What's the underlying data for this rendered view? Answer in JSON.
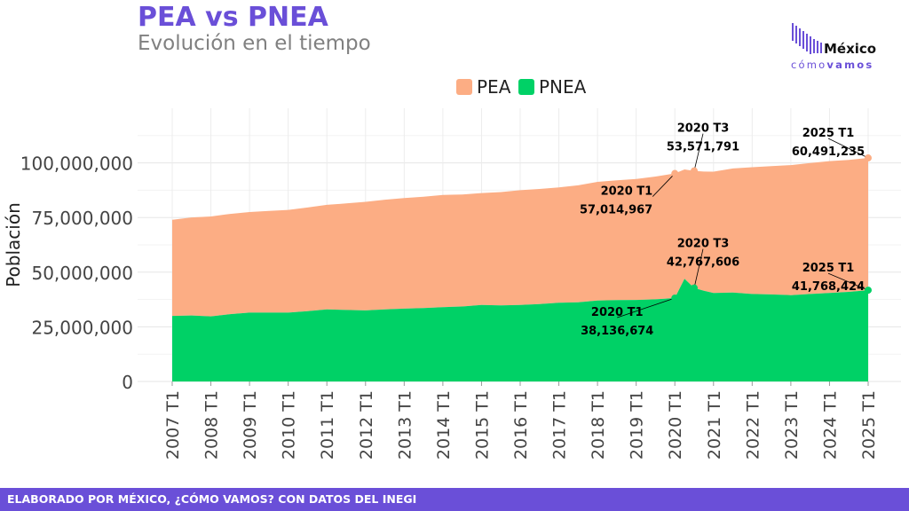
{
  "header": {
    "title": "PEA vs PNEA",
    "subtitle": "Evolución en el tiempo"
  },
  "logo": {
    "name": "México",
    "sub_light": "cómo",
    "sub_bold": "vamos"
  },
  "footer": {
    "text": "ELABORADO POR MÉXICO, ¿CÓMO VAMOS? CON DATOS DEL INEGI"
  },
  "colors": {
    "pea": "#fcad84",
    "pnea": "#00d166",
    "brand": "#6a4fd8"
  },
  "chart_data": {
    "type": "area",
    "stacked": true,
    "title": "PEA vs PNEA",
    "subtitle": "Evolución en el tiempo",
    "ylabel": "Población",
    "xlabel": "",
    "ylim": [
      0,
      125000000
    ],
    "yticks": [
      0,
      25000000,
      50000000,
      75000000,
      100000000
    ],
    "ytick_labels": [
      "0",
      "25,000,000",
      "50,000,000",
      "75,000,000",
      "100,000,000"
    ],
    "x_tick_labels": [
      "2007 T1",
      "2008 T1",
      "2009 T1",
      "2010 T1",
      "2011 T1",
      "2012 T1",
      "2013 T1",
      "2014 T1",
      "2015 T1",
      "2016 T1",
      "2017 T1",
      "2018 T1",
      "2019 T1",
      "2020 T1",
      "2021 T1",
      "2022 T1",
      "2023 T1",
      "2024 T1",
      "2025 T1"
    ],
    "grid": true,
    "legend_position": "top-center",
    "series": [
      {
        "name": "PEA",
        "color": "#fcad84",
        "points": [
          [
            "2007 T1",
            44000000
          ],
          [
            "2008 T1",
            45700000
          ],
          [
            "2009 T1",
            46000000
          ],
          [
            "2010 T1",
            47000000
          ],
          [
            "2011 T1",
            47800000
          ],
          [
            "2012 T1",
            49700000
          ],
          [
            "2013 T1",
            50600000
          ],
          [
            "2014 T1",
            51300000
          ],
          [
            "2015 T1",
            51200000
          ],
          [
            "2016 T1",
            52500000
          ],
          [
            "2017 T1",
            52800000
          ],
          [
            "2018 T1",
            54300000
          ],
          [
            "2019 T1",
            55300000
          ],
          [
            "2020 T1",
            57014967
          ],
          [
            "2020 T2",
            50000000
          ],
          [
            "2020 T3",
            53571791
          ],
          [
            "2021 T1",
            55500000
          ],
          [
            "2022 T1",
            58000000
          ],
          [
            "2023 T1",
            59500000
          ],
          [
            "2024 T1",
            60300000
          ],
          [
            "2025 T1",
            60491235
          ]
        ]
      },
      {
        "name": "PNEA",
        "color": "#00d166",
        "points": [
          [
            "2007 T1",
            30000000
          ],
          [
            "2007 T3",
            30200000
          ],
          [
            "2008 T1",
            29800000
          ],
          [
            "2008 T3",
            30800000
          ],
          [
            "2009 T1",
            31500000
          ],
          [
            "2009 T3",
            31500000
          ],
          [
            "2010 T1",
            31500000
          ],
          [
            "2010 T3",
            32200000
          ],
          [
            "2011 T1",
            33000000
          ],
          [
            "2011 T3",
            32700000
          ],
          [
            "2012 T1",
            32500000
          ],
          [
            "2012 T3",
            33000000
          ],
          [
            "2013 T1",
            33300000
          ],
          [
            "2013 T3",
            33600000
          ],
          [
            "2014 T1",
            34000000
          ],
          [
            "2014 T3",
            34300000
          ],
          [
            "2015 T1",
            35000000
          ],
          [
            "2015 T3",
            34800000
          ],
          [
            "2016 T1",
            35000000
          ],
          [
            "2016 T3",
            35400000
          ],
          [
            "2017 T1",
            36000000
          ],
          [
            "2017 T3",
            36200000
          ],
          [
            "2018 T1",
            37000000
          ],
          [
            "2018 T3",
            37200000
          ],
          [
            "2019 T1",
            37300000
          ],
          [
            "2019 T3",
            37600000
          ],
          [
            "2020 T1",
            38136674
          ],
          [
            "2020 T2",
            47000000
          ],
          [
            "2020 T3",
            42767606
          ],
          [
            "2020 T4",
            41500000
          ],
          [
            "2021 T1",
            40500000
          ],
          [
            "2021 T3",
            40700000
          ],
          [
            "2022 T1",
            40000000
          ],
          [
            "2022 T3",
            39800000
          ],
          [
            "2023 T1",
            39500000
          ],
          [
            "2023 T3",
            40000000
          ],
          [
            "2024 T1",
            40500000
          ],
          [
            "2024 T3",
            41000000
          ],
          [
            "2025 T1",
            41768424
          ]
        ]
      }
    ],
    "annotations": [
      {
        "series": "PEA",
        "at": "2020 T1",
        "label": "2020 T1",
        "value": "57,014,967"
      },
      {
        "series": "PEA",
        "at": "2020 T3",
        "label": "2020 T3",
        "value": "53,571,791"
      },
      {
        "series": "PEA",
        "at": "2025 T1",
        "label": "2025 T1",
        "value": "60,491,235"
      },
      {
        "series": "PNEA",
        "at": "2020 T1",
        "label": "2020 T1",
        "value": "38,136,674"
      },
      {
        "series": "PNEA",
        "at": "2020 T3",
        "label": "2020 T3",
        "value": "42,767,606"
      },
      {
        "series": "PNEA",
        "at": "2025 T1",
        "label": "2025 T1",
        "value": "41,768,424"
      }
    ]
  }
}
